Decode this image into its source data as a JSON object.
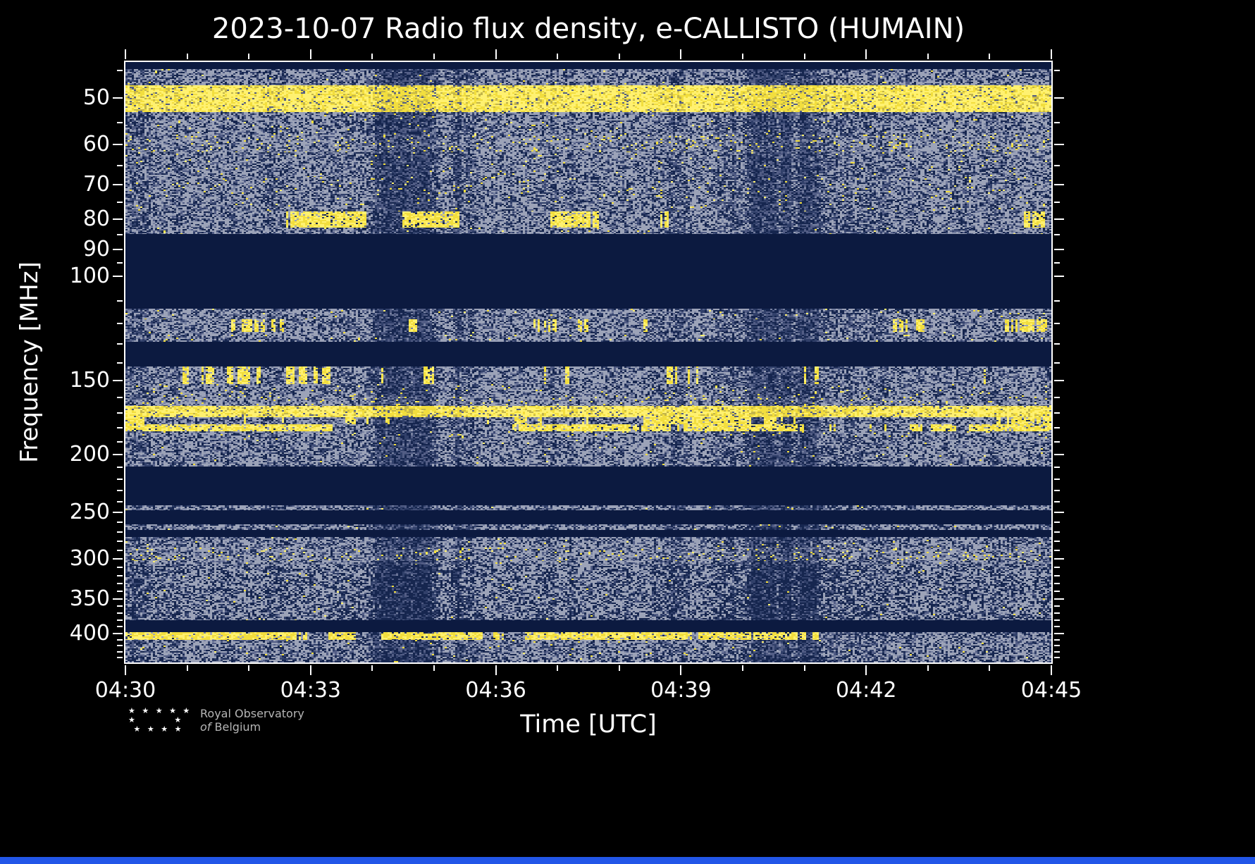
{
  "title": "2023-10-07 Radio flux density, e-CALLISTO (HUMAIN)",
  "axes": {
    "xlabel": "Time [UTC]",
    "ylabel": "Frequency [MHz]"
  },
  "logo": {
    "line1": "Royal Observatory",
    "line2_italic": "of",
    "line2_rest": "Belgium",
    "stars_rows": [
      "★ ★ ★ ★ ★",
      "★ ★",
      "★ ★ ★ ★"
    ]
  },
  "chart_data": {
    "type": "heatmap",
    "title": "2023-10-07 Radio flux density, e-CALLISTO (HUMAIN)",
    "date": "2023-10-07",
    "instrument": "e-CALLISTO (HUMAIN)",
    "xlabel": "Time [UTC]",
    "ylabel": "Frequency [MHz]",
    "x_ticks": [
      "04:30",
      "04:33",
      "04:36",
      "04:39",
      "04:42",
      "04:45"
    ],
    "x_minor_divisions": 3,
    "time_range": [
      "04:30",
      "04:45"
    ],
    "y_scale": "log",
    "y_axis_inverted": true,
    "y_ticks": [
      50,
      60,
      70,
      80,
      90,
      100,
      150,
      200,
      250,
      300,
      350,
      400
    ],
    "y_minor_ticks": [
      45,
      55,
      65,
      75,
      85,
      95,
      110,
      120,
      130,
      140,
      160,
      170,
      180,
      190,
      210,
      220,
      230,
      240,
      260,
      270,
      280,
      290,
      310,
      320,
      330,
      340,
      360,
      370,
      380,
      390,
      410,
      420,
      430,
      440
    ],
    "freq_range": [
      43.5,
      448
    ],
    "legend": "none",
    "grid": false,
    "colors": {
      "background": "#000000",
      "frame": "#ffffff",
      "text": "#ffffff",
      "blank_band": "#0c1a40",
      "noise_base": "#16264f",
      "noise_palette": [
        "#31406a",
        "#525d85",
        "#7680a0",
        "#9ca3b8"
      ],
      "yellow": "#f2de3e",
      "yellow_bright": "#fff170",
      "yellow_dim": "#c3b54a",
      "logo_text": "#b5b5b5",
      "bottom_bar": "#2256e8"
    },
    "bands": [
      {
        "f0": 43.5,
        "f1": 44.7,
        "style": "blank"
      },
      {
        "f0": 44.7,
        "f1": 47.6,
        "style": "noise",
        "yellow": 0.01
      },
      {
        "f0": 47.6,
        "f1": 52.8,
        "style": "yellow_band",
        "note": "strong continuous RFI band near 50 MHz"
      },
      {
        "f0": 52.8,
        "f1": 57.7,
        "style": "noise",
        "yellow": 0.012
      },
      {
        "f0": 57.7,
        "f1": 61.7,
        "style": "noise_bright",
        "yellow": 0.05
      },
      {
        "f0": 61.7,
        "f1": 67.9,
        "style": "noise",
        "yellow": 0.012
      },
      {
        "f0": 67.9,
        "f1": 73.3,
        "style": "noise",
        "yellow": 0.025
      },
      {
        "f0": 73.3,
        "f1": 77.8,
        "style": "noise",
        "yellow": 0.012
      },
      {
        "f0": 77.8,
        "f1": 82.8,
        "style": "yellow_dashes",
        "yellow": 0.3
      },
      {
        "f0": 82.8,
        "f1": 84.9,
        "style": "noise",
        "yellow": 0.01
      },
      {
        "f0": 84.9,
        "f1": 113.5,
        "style": "blank"
      },
      {
        "f0": 113.5,
        "f1": 118,
        "style": "noise",
        "yellow": 0.012
      },
      {
        "f0": 118,
        "f1": 124,
        "style": "speckle",
        "yellow": 0.09
      },
      {
        "f0": 124,
        "f1": 128.8,
        "style": "noise",
        "yellow": 0.012
      },
      {
        "f0": 128.8,
        "f1": 142,
        "style": "blank"
      },
      {
        "f0": 142,
        "f1": 152,
        "style": "speckle",
        "yellow": 0.05
      },
      {
        "f0": 152,
        "f1": 159.6,
        "style": "noise",
        "yellow": 0.02
      },
      {
        "f0": 159.6,
        "f1": 165.6,
        "style": "noise_bright",
        "yellow": 0.04
      },
      {
        "f0": 165.6,
        "f1": 173,
        "style": "yellow_band",
        "note": "strong continuous RFI band near 170 MHz"
      },
      {
        "f0": 173,
        "f1": 177.8,
        "style": "yellow_dashes",
        "yellow": 0.55
      },
      {
        "f0": 177.8,
        "f1": 182.7,
        "style": "yellow_dashes",
        "yellow": 0.45
      },
      {
        "f0": 182.7,
        "f1": 186.8,
        "style": "noise",
        "yellow": 0.02
      },
      {
        "f0": 186.8,
        "f1": 209.5,
        "style": "noise",
        "yellow": 0.006
      },
      {
        "f0": 209.5,
        "f1": 243,
        "style": "blank"
      },
      {
        "f0": 243,
        "f1": 248.3,
        "style": "noise",
        "yellow": 0.006
      },
      {
        "f0": 248.3,
        "f1": 262.3,
        "style": "blank"
      },
      {
        "f0": 262.3,
        "f1": 268.1,
        "style": "noise",
        "yellow": 0.006
      },
      {
        "f0": 268.1,
        "f1": 275.3,
        "style": "blank"
      },
      {
        "f0": 275.3,
        "f1": 286.5,
        "style": "noise",
        "yellow": 0.012
      },
      {
        "f0": 286.5,
        "f1": 302,
        "style": "noise_bright",
        "yellow": 0.05
      },
      {
        "f0": 302,
        "f1": 306,
        "style": "noise",
        "yellow": 0.012
      },
      {
        "f0": 306,
        "f1": 380,
        "style": "noise_dark",
        "yellow": 0.004
      },
      {
        "f0": 380,
        "f1": 398,
        "style": "blank"
      },
      {
        "f0": 398,
        "f1": 410,
        "style": "yellow_dashes",
        "yellow": 0.35
      },
      {
        "f0": 410,
        "f1": 438,
        "style": "noise",
        "yellow": 0.012
      },
      {
        "f0": 438,
        "f1": 448,
        "style": "noise_dark",
        "yellow": 0.003
      }
    ]
  }
}
